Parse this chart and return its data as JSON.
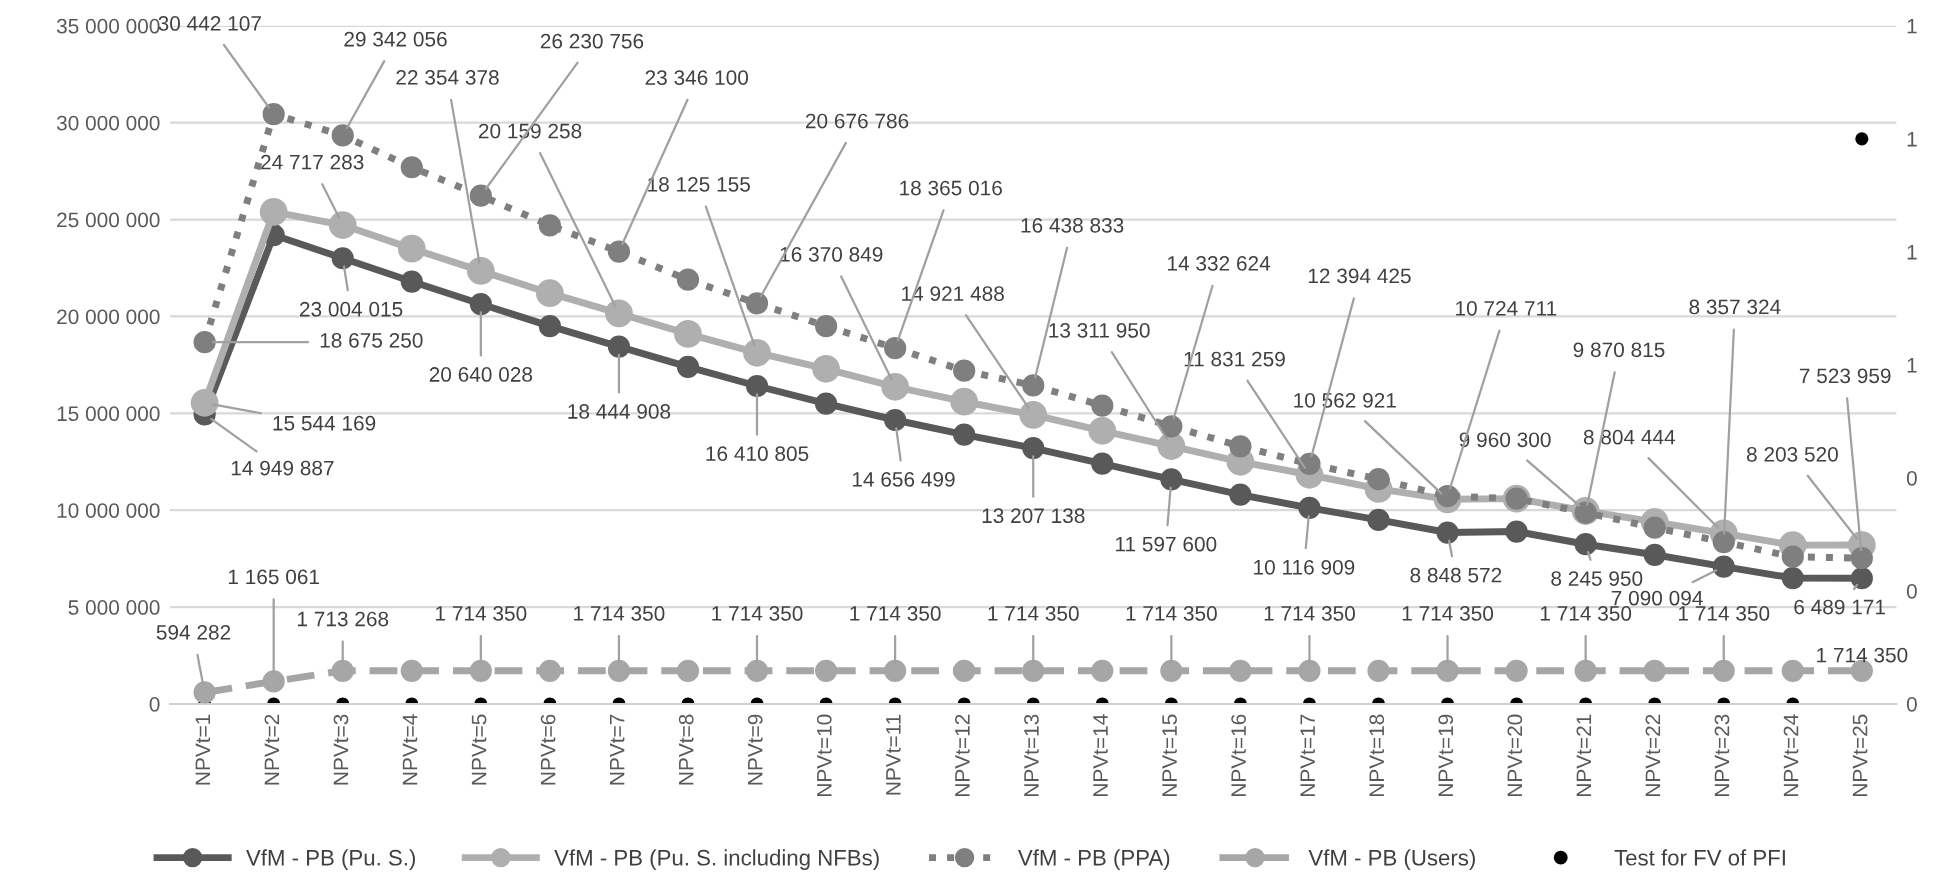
{
  "chart_data": {
    "type": "line",
    "categories": [
      "NPVt=1",
      "NPVt=2",
      "NPVt=3",
      "NPVt=4",
      "NPVt=5",
      "NPVt=6",
      "NPVt=7",
      "NPVt=8",
      "NPVt=9",
      "NPVt=10",
      "NPVt=11",
      "NPVt=12",
      "NPVt=13",
      "NPVt=14",
      "NPVt=15",
      "NPVt=16",
      "NPVt=17",
      "NPVt=18",
      "NPVt=19",
      "NPVt=20",
      "NPVt=21",
      "NPVt=22",
      "NPVt=23",
      "NPVt=24",
      "NPVt=25"
    ],
    "ylim": [
      0,
      35000000
    ],
    "yticks": [
      {
        "value": 0,
        "label": "0"
      },
      {
        "value": 5000000,
        "label": "5 000 000"
      },
      {
        "value": 10000000,
        "label": "10 000 000"
      },
      {
        "value": 15000000,
        "label": "15 000 000"
      },
      {
        "value": 20000000,
        "label": "20 000 000"
      },
      {
        "value": 25000000,
        "label": "25 000 000"
      },
      {
        "value": 30000000,
        "label": "30 000 000"
      },
      {
        "value": 35000000,
        "label": "35 000 000"
      }
    ],
    "y2lim": [
      0,
      1.2
    ],
    "y2ticks": [
      {
        "value": 0,
        "label": "0"
      },
      {
        "value": 0.2,
        "label": "0"
      },
      {
        "value": 0.4,
        "label": "0"
      },
      {
        "value": 0.6,
        "label": "1"
      },
      {
        "value": 0.8,
        "label": "1"
      },
      {
        "value": 1.0,
        "label": "1"
      },
      {
        "value": 1.2,
        "label": "1"
      }
    ],
    "grid": "y",
    "legend": "bottom",
    "marker": "circle",
    "series": [
      {
        "name": "VfM - PB (Pu. S.)",
        "color": "#595959",
        "line_style": "solid",
        "values": [
          14949887,
          24200000,
          23004015,
          21800000,
          20640028,
          19500000,
          18444908,
          17400000,
          16410805,
          15500000,
          14656499,
          13900000,
          13207138,
          12400000,
          11597600,
          10800000,
          10116909,
          9500000,
          8848572,
          8900000,
          8245950,
          7700000,
          7090094,
          6500000,
          6489171
        ],
        "value_labels": [
          "14 949 887",
          null,
          "23 004 015",
          null,
          "20 640 028",
          null,
          "18 444 908",
          null,
          "16 410 805",
          null,
          "14 656 499",
          null,
          "13 207 138",
          null,
          "11 597 600",
          null,
          "10 116 909",
          null,
          "8 848 572",
          null,
          "8 245 950",
          null,
          "7 090 094",
          null,
          "6 489 171"
        ]
      },
      {
        "name": "VfM - PB (Pu. S. including NFBs)",
        "color": "#afafaf",
        "line_style": "solid",
        "values": [
          15544169,
          25400000,
          24717283,
          23500000,
          22354378,
          21200000,
          20159258,
          19100000,
          18125155,
          17300000,
          16370849,
          15600000,
          14921488,
          14100000,
          13311950,
          12500000,
          11831259,
          11100000,
          10562921,
          10600000,
          9960300,
          9400000,
          8804444,
          8200000,
          8203520
        ],
        "value_labels": [
          "15 544 169",
          null,
          "24 717 283",
          null,
          "22 354 378",
          null,
          "20 159 258",
          null,
          "18 125 155",
          null,
          "16 370 849",
          null,
          "14 921 488",
          null,
          "13 311 950",
          null,
          "11 831 259",
          null,
          "10 562 921",
          null,
          "9 960 300",
          null,
          "8 804 444",
          null,
          "8 203 520"
        ]
      },
      {
        "name": "VfM - PB (PPA)",
        "color": "#7f7f7f",
        "line_style": "dotted",
        "values": [
          18675250,
          30442107,
          29342056,
          27700000,
          26230756,
          24700000,
          23346100,
          21900000,
          20676786,
          19500000,
          18365016,
          17200000,
          16438833,
          15400000,
          14332624,
          13300000,
          12394425,
          11600000,
          10724711,
          10600000,
          9870815,
          9100000,
          8357324,
          7600000,
          7523959
        ],
        "value_labels": [
          "18 675 250",
          "30 442 107",
          "29 342 056",
          null,
          "26 230 756",
          null,
          "23 346 100",
          null,
          "20 676 786",
          null,
          "18 365 016",
          null,
          "16 438 833",
          null,
          "14 332 624",
          null,
          "12 394 425",
          null,
          "10 724 711",
          null,
          "9 870 815",
          null,
          "8 357 324",
          null,
          "7 523 959"
        ]
      },
      {
        "name": "VfM - PB (Users)",
        "color": "#a6a6a6",
        "line_style": "dashed",
        "values": [
          594282,
          1165061,
          1713268,
          1714350,
          1714350,
          1714350,
          1714350,
          1714350,
          1714350,
          1714350,
          1714350,
          1714350,
          1714350,
          1714350,
          1714350,
          1714350,
          1714350,
          1714350,
          1714350,
          1714350,
          1714350,
          1714350,
          1714350,
          1714350,
          1714350
        ],
        "value_labels": [
          "594 282",
          "1 165 061",
          "1 713 268",
          null,
          "1 714 350",
          null,
          "1 714 350",
          null,
          "1 714 350",
          null,
          "1 714 350",
          null,
          "1 714 350",
          null,
          "1 714 350",
          null,
          "1 714 350",
          null,
          "1 714 350",
          null,
          "1 714 350",
          null,
          "1 714 350",
          null,
          "1 714 350"
        ]
      },
      {
        "name": "Test for FV of PFI",
        "color": "#000000",
        "type": "scatter",
        "axis": "y2",
        "values": [
          0,
          0,
          0,
          0,
          0,
          0,
          0,
          0,
          0,
          0,
          0,
          0,
          0,
          0,
          0,
          0,
          0,
          0,
          0,
          0,
          0,
          0,
          0,
          0,
          1
        ]
      }
    ]
  }
}
